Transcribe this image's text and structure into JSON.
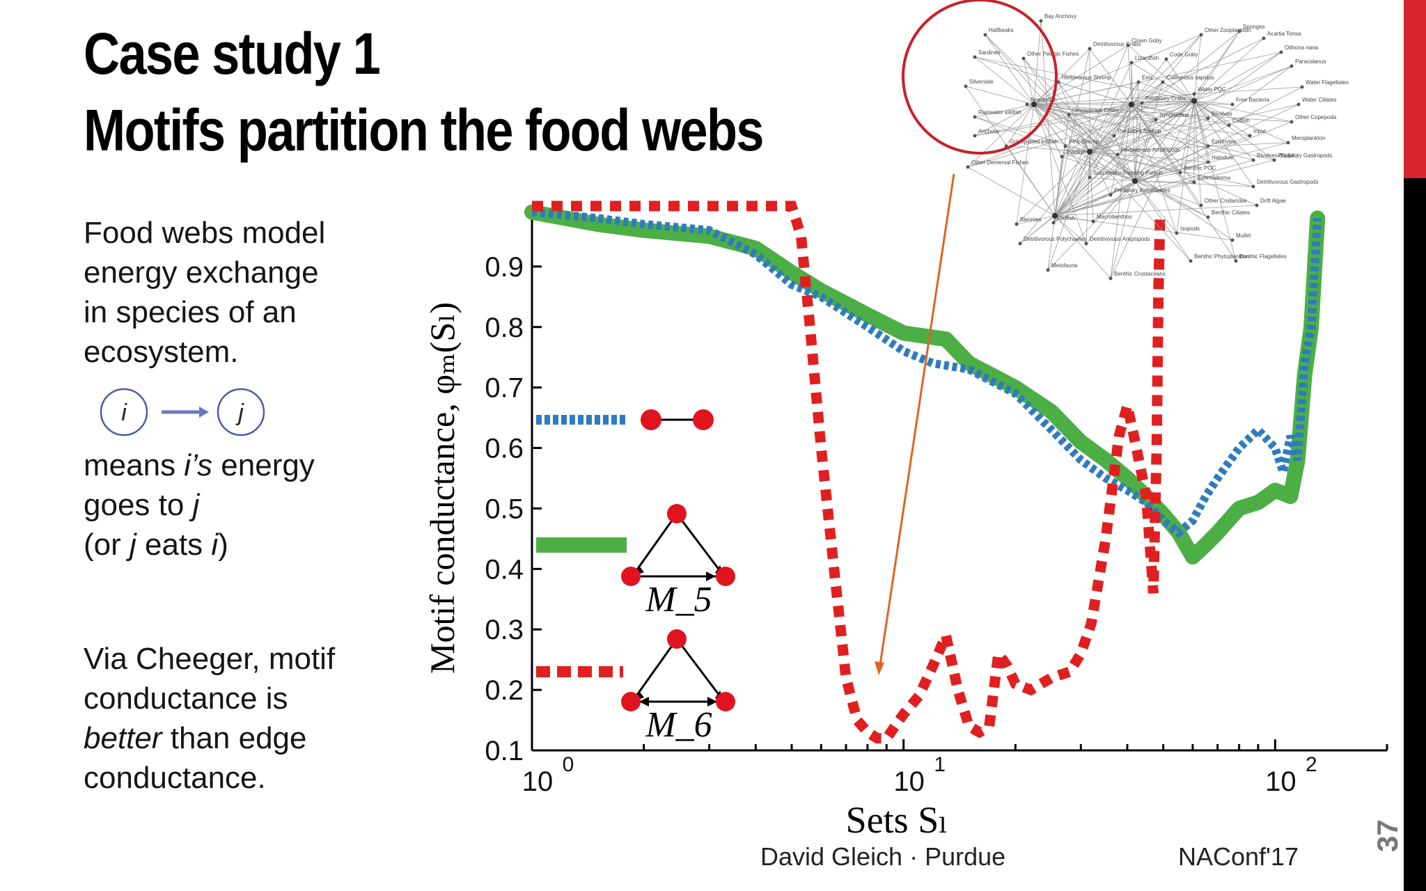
{
  "slide": {
    "title_line1": "Case study 1",
    "title_line2": "Motifs partition the food webs",
    "para1": [
      "Food webs model",
      "energy exchange",
      "in species of an",
      "ecosystem."
    ],
    "para2_line1_pre": "means ",
    "para2_line1_it": "i’s",
    "para2_line1_post": " energy",
    "para2_line2_pre": "goes to ",
    "para2_line2_it": "j",
    "para2_line3_pre": "(or ",
    "para2_line3_it1": "j",
    "para2_line3_mid": " eats ",
    "para2_line3_it2": "i",
    "para2_line3_post": ")",
    "para3_line1": "Via Cheeger, motif",
    "para3_line2": "conductance is",
    "para3_line3_it": "better",
    "para3_line3_post": " than edge",
    "para3_line4": "conductance.",
    "node_i": "i",
    "node_j": "j",
    "footer_author": "David Gleich · Purdue",
    "footer_conf": "NAConf'17",
    "page_number": "37",
    "colors": {
      "accent_red": "#d9262e",
      "sidebar_black": "#000000",
      "arrow_blue": "#6a78c2"
    }
  },
  "chart_data": {
    "type": "line",
    "xscale": "log",
    "xlim": [
      1,
      200
    ],
    "ylim": [
      0.1,
      1.0
    ],
    "xlabel": "Sets S_l",
    "ylabel": "Motif conductance, φ_M(S_l)",
    "x_tick_labels": [
      "10^0",
      "10^1",
      "10^2"
    ],
    "y_ticks": [
      0.1,
      0.2,
      0.3,
      0.4,
      0.5,
      0.6,
      0.7,
      0.8,
      0.9
    ],
    "y_tick_labels": [
      "0.1",
      "0.2",
      "0.3",
      "0.4",
      "0.5",
      "0.6",
      "0.7",
      "0.8",
      "0.9"
    ],
    "legend": [
      {
        "motif": "edge",
        "style": "blue dotted",
        "color": "#2f7bbf"
      },
      {
        "motif": "M5",
        "label": "M_5",
        "style": "green solid",
        "color": "#4caf45"
      },
      {
        "motif": "M6",
        "label": "M_6",
        "style": "red dashed",
        "color": "#e02020"
      }
    ],
    "series": [
      {
        "color": "#4caf45",
        "style": "solid",
        "x": [
          1,
          1.5,
          2,
          3,
          4,
          5,
          6,
          8,
          10,
          13,
          15,
          20,
          25,
          30,
          35,
          40,
          45,
          50,
          55,
          60,
          65,
          70,
          80,
          90,
          100,
          110,
          115,
          120,
          125,
          130
        ],
        "y": [
          0.99,
          0.97,
          0.96,
          0.95,
          0.93,
          0.89,
          0.86,
          0.82,
          0.79,
          0.78,
          0.74,
          0.7,
          0.66,
          0.61,
          0.58,
          0.55,
          0.52,
          0.49,
          0.46,
          0.42,
          0.44,
          0.46,
          0.5,
          0.51,
          0.53,
          0.52,
          0.58,
          0.72,
          0.8,
          0.98
        ]
      },
      {
        "color": "#2f7bbf",
        "style": "dotted",
        "x": [
          1,
          1.5,
          2,
          3,
          4,
          5,
          6,
          8,
          10,
          12,
          15,
          20,
          25,
          30,
          35,
          40,
          45,
          50,
          55,
          60,
          65,
          70,
          80,
          90,
          100,
          105,
          110,
          115,
          120,
          125,
          130
        ],
        "y": [
          0.99,
          0.98,
          0.97,
          0.96,
          0.92,
          0.87,
          0.85,
          0.8,
          0.76,
          0.74,
          0.73,
          0.69,
          0.63,
          0.58,
          0.55,
          0.53,
          0.51,
          0.48,
          0.46,
          0.48,
          0.52,
          0.55,
          0.6,
          0.63,
          0.6,
          0.56,
          0.62,
          0.58,
          0.74,
          0.8,
          0.98
        ]
      },
      {
        "color": "#e02020",
        "style": "dashed",
        "x": [
          1,
          2,
          3,
          4,
          5,
          5.3,
          5.6,
          6,
          6.5,
          7,
          7.5,
          8,
          8.5,
          9,
          10,
          11,
          12,
          13,
          14,
          15,
          16,
          17,
          18,
          19,
          20,
          22,
          25,
          28,
          30,
          32,
          35,
          38,
          40,
          42,
          45,
          47,
          48,
          48.5,
          49
        ],
        "y": [
          1.0,
          1.0,
          1.0,
          1.0,
          1.0,
          0.95,
          0.8,
          0.6,
          0.4,
          0.22,
          0.15,
          0.13,
          0.12,
          0.12,
          0.16,
          0.19,
          0.24,
          0.29,
          0.2,
          0.14,
          0.13,
          0.14,
          0.26,
          0.24,
          0.21,
          0.2,
          0.22,
          0.23,
          0.26,
          0.31,
          0.45,
          0.62,
          0.67,
          0.61,
          0.52,
          0.36,
          0.6,
          0.85,
          0.98
        ]
      }
    ]
  },
  "inset": {
    "species": [
      "Bay Anchovy",
      "Halfbeaks",
      "Sardines",
      "Silverside",
      "Rainwater killifish",
      "Anchovy",
      "Goldspotted killifish",
      "Other Pelagic Fishes",
      "Needlefish",
      "Detritivorous Crabs",
      "Herbivorous Shrimp",
      "Omnivorous Crabs",
      "Pink Shrimp",
      "Toadfish",
      "Other Demersal Fishes",
      "Clown Goby",
      "Lizardfish",
      "Code Goby",
      "Eels",
      "Callinectus sapidus",
      "Predatory Crabs",
      "Syngnathus",
      "Predatory Shrimp",
      "Herbivorous Amphipods",
      "Suspension Feeding Polych",
      "Predatory Polychaetes",
      "Flatfish",
      "Blennies",
      "Macrobenthos",
      "Detritivorous Polychaetes",
      "Detritivorous Amphipods",
      "Meiofauna",
      "Benthic Crustaceans",
      "Other Zooplankton",
      "Sponges",
      "Acartia Tonsa",
      "Oithona nana",
      "Paracalanus",
      "Water POC",
      "Water Flagellates",
      "Water Ciliates",
      "Free Bacteria",
      "Other Copepoda",
      "Bivalves",
      "Catfish",
      "Input",
      "Meroplankton",
      "Epiphytes",
      "Predatory Gastropods",
      "Halodule",
      "Benthic POC",
      "Echinoderma",
      "Detritivorous Gastropods",
      "Other Cnidaridae",
      "Drift Algae",
      "Benthic Ciliates",
      "Isopods",
      "Mullet",
      "Benthic Phytoplankton",
      "Benthic Flagellates",
      "Bivalves (Epiph.)"
    ]
  }
}
